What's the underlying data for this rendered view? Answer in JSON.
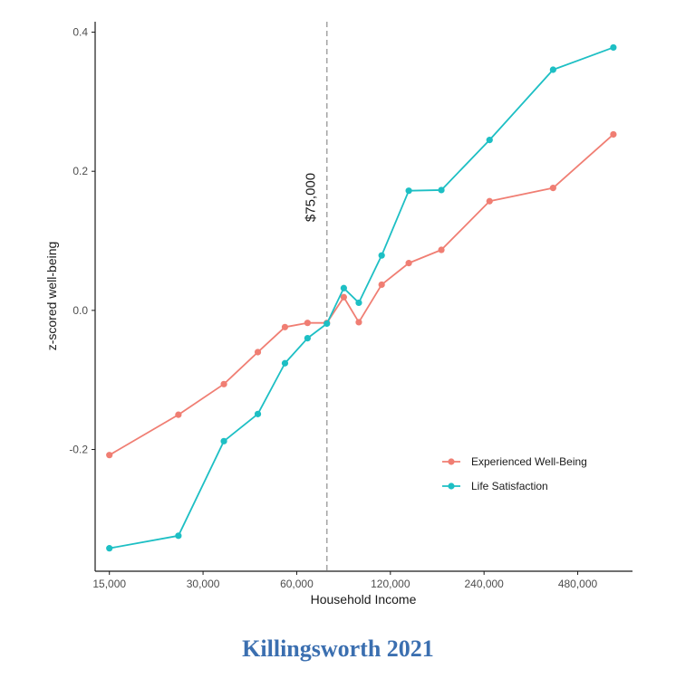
{
  "chart_data": {
    "type": "line",
    "xlabel": "Household Income",
    "ylabel": "z-scored well-being",
    "x_scale": "log2",
    "xticks": [
      15000,
      30000,
      60000,
      120000,
      240000,
      480000
    ],
    "xtick_labels": [
      "15,000",
      "30,000",
      "60,000",
      "120,000",
      "240,000",
      "480,000"
    ],
    "xlim": [
      13500,
      720000
    ],
    "yticks": [
      -0.2,
      0.0,
      0.2,
      0.4
    ],
    "ytick_labels": [
      "-0.2",
      "0.0",
      "0.2",
      "0.4"
    ],
    "ylim": [
      -0.375,
      0.415
    ],
    "grid": false,
    "legend_position": "bottom-right",
    "series": [
      {
        "name": "Experienced Well-Being",
        "color": "#f07e73",
        "x": [
          15000,
          25000,
          35000,
          45000,
          55000,
          65000,
          75000,
          85000,
          95000,
          112500,
          137500,
          175000,
          250000,
          400000,
          625000
        ],
        "y": [
          -0.208,
          -0.15,
          -0.106,
          -0.06,
          -0.024,
          -0.018,
          -0.018,
          0.019,
          -0.017,
          0.037,
          0.068,
          0.087,
          0.157,
          0.176,
          0.253
        ]
      },
      {
        "name": "Life Satisfaction",
        "color": "#1dbfc4",
        "x": [
          15000,
          25000,
          35000,
          45000,
          55000,
          65000,
          75000,
          85000,
          95000,
          112500,
          137500,
          175000,
          250000,
          400000,
          625000
        ],
        "y": [
          -0.342,
          -0.324,
          -0.188,
          -0.149,
          -0.076,
          -0.04,
          -0.019,
          0.032,
          0.011,
          0.079,
          0.172,
          0.173,
          0.245,
          0.346,
          0.378
        ]
      }
    ],
    "reference_line": {
      "x": 75000,
      "label": "$75,000",
      "style": "dashed",
      "color": "#a6a6a6"
    }
  },
  "caption": "Killingsworth 2021"
}
